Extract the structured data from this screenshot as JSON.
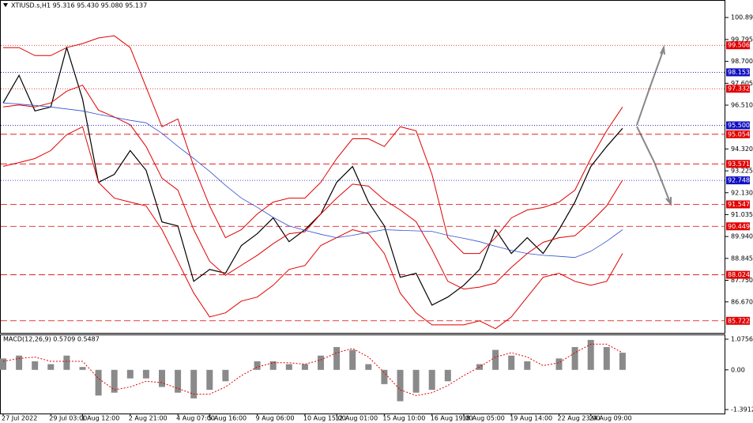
{
  "chart_data": [
    {
      "type": "line",
      "title": "XTIUSD.s,H1  95.316 95.430 95.080 95.137",
      "categories": [
        "27 Jul 2022",
        null,
        null,
        "29 Jul 03:00",
        null,
        "1 Aug 12:00",
        null,
        null,
        "2 Aug 21:00",
        null,
        null,
        "4 Aug 07:00",
        null,
        "5 Aug 16:00",
        null,
        null,
        "9 Aug 06:00",
        null,
        null,
        "10 Aug 15:00",
        null,
        "12 Aug 01:00",
        null,
        null,
        "15 Aug 10:00",
        null,
        null,
        "16 Aug 19:00",
        null,
        "18 Aug 05:00",
        null,
        null,
        "19 Aug 14:00",
        null,
        null,
        "22 Aug 23:00",
        null,
        "24 Aug 09:00",
        null,
        null
      ],
      "series": [
        {
          "color": "#000000",
          "width": 1.2,
          "values": [
            96.62,
            98.0,
            96.22,
            96.42,
            99.39,
            96.81,
            92.65,
            93.05,
            94.24,
            93.25,
            90.67,
            90.47,
            87.7,
            88.29,
            88.1,
            89.49,
            90.08,
            90.87,
            89.68,
            90.28,
            91.07,
            92.65,
            93.44,
            91.66,
            90.47,
            87.9,
            88.1,
            86.51,
            86.91,
            87.5,
            88.29,
            90.28,
            89.09,
            89.88,
            89.09,
            90.28,
            91.66,
            93.44,
            94.44,
            95.35
          ]
        },
        {
          "color": "#e00000",
          "width": 1,
          "values": [
            99.39,
            99.39,
            98.99,
            98.99,
            99.39,
            99.59,
            99.87,
            99.98,
            99.39,
            97.41,
            95.43,
            95.82,
            93.45,
            91.47,
            89.88,
            90.28,
            91.07,
            91.66,
            91.86,
            91.86,
            92.65,
            93.84,
            94.83,
            94.83,
            94.44,
            95.43,
            95.23,
            93.05,
            89.88,
            89.09,
            89.09,
            89.88,
            90.87,
            91.27,
            91.39,
            91.66,
            92.26,
            93.84,
            95.23,
            96.42
          ]
        },
        {
          "color": "#e00000",
          "width": 1,
          "values": [
            96.42,
            96.52,
            96.42,
            96.62,
            97.21,
            97.51,
            96.26,
            95.92,
            95.53,
            94.44,
            92.86,
            92.26,
            90.28,
            88.7,
            88.0,
            88.5,
            89.0,
            89.58,
            90.08,
            90.18,
            91.07,
            91.86,
            92.56,
            92.46,
            91.77,
            91.27,
            90.68,
            89.29,
            87.7,
            87.31,
            87.41,
            87.61,
            88.4,
            89.09,
            89.65,
            89.88,
            89.98,
            90.67,
            91.47,
            92.76
          ]
        },
        {
          "color": "#e00000",
          "width": 1,
          "values": [
            93.45,
            93.64,
            93.84,
            94.24,
            95.03,
            95.43,
            92.65,
            91.86,
            91.66,
            91.47,
            90.28,
            88.69,
            87.11,
            85.92,
            86.12,
            86.71,
            86.91,
            87.5,
            88.29,
            88.49,
            89.49,
            89.88,
            90.28,
            90.08,
            89.09,
            87.11,
            86.12,
            85.52,
            85.52,
            85.52,
            85.72,
            85.33,
            85.92,
            86.91,
            87.9,
            88.1,
            87.7,
            87.5,
            87.7,
            89.09
          ]
        },
        {
          "color": "#3050d0",
          "width": 0.8,
          "values": [
            96.62,
            96.56,
            96.5,
            96.42,
            96.32,
            96.22,
            96.05,
            95.9,
            95.75,
            95.63,
            95.1,
            94.45,
            93.84,
            93.2,
            92.5,
            91.86,
            91.4,
            90.9,
            90.47,
            90.25,
            90.05,
            89.88,
            90.0,
            90.15,
            90.28,
            90.25,
            90.22,
            90.2,
            90.0,
            89.85,
            89.68,
            89.45,
            89.25,
            89.09,
            89.0,
            88.95,
            88.89,
            89.2,
            89.7,
            90.28
          ]
        }
      ],
      "ylim": [
        85.12,
        101.77
      ],
      "yticks": [
        {
          "value": 100.895,
          "label": "100.895"
        },
        {
          "value": 99.795,
          "label": "99.795"
        },
        {
          "value": 98.7,
          "label": "98.700"
        },
        {
          "value": 97.605,
          "label": "97.605"
        },
        {
          "value": 96.51,
          "label": "96.510"
        },
        {
          "value": 94.32,
          "label": "94.320"
        },
        {
          "value": 93.225,
          "label": "93.225"
        },
        {
          "value": 92.13,
          "label": "92.130"
        },
        {
          "value": 91.035,
          "label": "91.035"
        },
        {
          "value": 89.94,
          "label": "89.940"
        },
        {
          "value": 88.845,
          "label": "88.845"
        },
        {
          "value": 87.75,
          "label": "87.750"
        },
        {
          "value": 86.67,
          "label": "86.670"
        }
      ],
      "levels": {
        "values": [
          99.506,
          98.153,
          97.332,
          95.5,
          95.054,
          93.571,
          92.748,
          91.547,
          90.449,
          88.024,
          85.722
        ],
        "value_labels": [
          "99.506",
          "98.153",
          "97.332",
          "95.500",
          "95.054",
          "93.571",
          "92.748",
          "91.547",
          "90.449",
          "88.024",
          "85.722"
        ],
        "colors": [
          "#e00000",
          "#1010c0",
          "#e00000",
          "#1010c0",
          "#e00000",
          "#e00000",
          "#1010c0",
          "#e00000",
          "#e00000",
          "#e00000",
          "#e00000"
        ],
        "dashed": [
          false,
          false,
          false,
          false,
          true,
          true,
          false,
          true,
          true,
          true,
          true
        ]
      }
    },
    {
      "type": "bar",
      "title": "MACD(12,26,9) 0.5709 0.5487",
      "values": [
        0.4,
        0.5,
        0.3,
        0.2,
        0.5,
        0.1,
        -0.9,
        -0.8,
        -0.3,
        -0.3,
        -0.6,
        -0.8,
        -1.0,
        -0.7,
        -0.4,
        0.0,
        0.3,
        0.3,
        0.2,
        0.2,
        0.5,
        0.8,
        0.7,
        0.2,
        -0.5,
        -1.1,
        -0.8,
        -0.7,
        -0.4,
        0.0,
        0.2,
        0.7,
        0.5,
        0.3,
        0.0,
        0.4,
        0.8,
        1.05,
        0.8,
        0.6
      ],
      "color": "#8a8a8a",
      "signal": [
        0.3,
        0.4,
        0.45,
        0.3,
        0.3,
        0.3,
        -0.3,
        -0.7,
        -0.6,
        -0.4,
        -0.45,
        -0.65,
        -0.85,
        -0.85,
        -0.6,
        -0.2,
        0.1,
        0.25,
        0.25,
        0.2,
        0.35,
        0.6,
        0.75,
        0.45,
        -0.1,
        -0.7,
        -0.9,
        -0.8,
        -0.55,
        -0.2,
        0.1,
        0.45,
        0.6,
        0.45,
        0.15,
        0.25,
        0.6,
        0.9,
        0.9,
        0.6
      ],
      "signal_color": "#e00000",
      "ylim": [
        -1.53,
        1.214
      ],
      "yticks": [
        1.0756,
        {
          "value": 0,
          "label": "0.00"
        },
        -1.3912
      ]
    }
  ]
}
